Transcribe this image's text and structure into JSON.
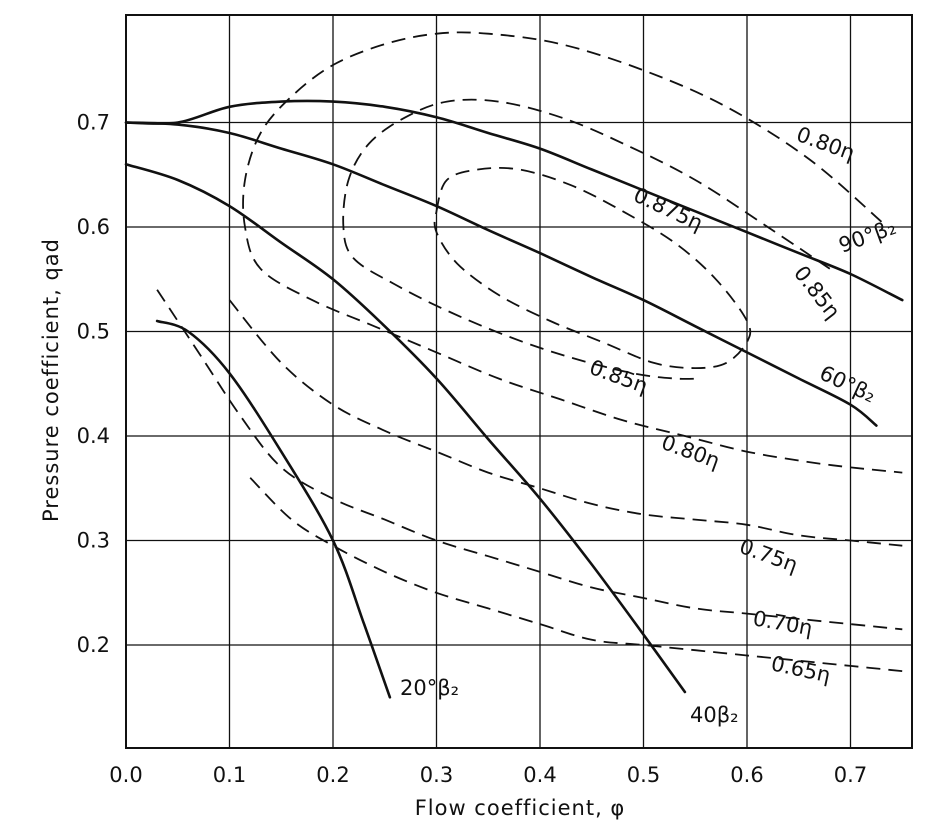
{
  "chart_data": {
    "type": "line",
    "title": "",
    "xlabel": "Flow coefficient, φ",
    "ylabel": "Pressure coefficient, qad",
    "xlim": [
      0.0,
      0.75
    ],
    "ylim": [
      0.1,
      0.8
    ],
    "xticks": [
      "0.0",
      "0.1",
      "0.2",
      "0.3",
      "0.4",
      "0.5",
      "0.6",
      "0.7"
    ],
    "yticks": [
      "0.2",
      "0.3",
      "0.4",
      "0.5",
      "0.6",
      "0.7"
    ],
    "grid": true,
    "legend": "none",
    "blade_curves": [
      {
        "label": "90°β₂",
        "style": "solid",
        "points": [
          [
            0.0,
            0.7
          ],
          [
            0.05,
            0.7
          ],
          [
            0.1,
            0.715
          ],
          [
            0.15,
            0.72
          ],
          [
            0.2,
            0.72
          ],
          [
            0.25,
            0.715
          ],
          [
            0.3,
            0.705
          ],
          [
            0.35,
            0.69
          ],
          [
            0.4,
            0.675
          ],
          [
            0.45,
            0.655
          ],
          [
            0.5,
            0.635
          ],
          [
            0.55,
            0.615
          ],
          [
            0.6,
            0.595
          ],
          [
            0.65,
            0.575
          ],
          [
            0.7,
            0.555
          ],
          [
            0.75,
            0.53
          ]
        ]
      },
      {
        "label": "60°β₂",
        "style": "solid",
        "points": [
          [
            0.0,
            0.7
          ],
          [
            0.05,
            0.698
          ],
          [
            0.1,
            0.69
          ],
          [
            0.15,
            0.675
          ],
          [
            0.2,
            0.66
          ],
          [
            0.25,
            0.64
          ],
          [
            0.3,
            0.62
          ],
          [
            0.35,
            0.597
          ],
          [
            0.4,
            0.575
          ],
          [
            0.45,
            0.552
          ],
          [
            0.5,
            0.53
          ],
          [
            0.55,
            0.505
          ],
          [
            0.6,
            0.48
          ],
          [
            0.65,
            0.455
          ],
          [
            0.7,
            0.43
          ],
          [
            0.725,
            0.41
          ]
        ]
      },
      {
        "label": "40β₂",
        "style": "solid",
        "points": [
          [
            0.0,
            0.66
          ],
          [
            0.05,
            0.645
          ],
          [
            0.1,
            0.62
          ],
          [
            0.15,
            0.585
          ],
          [
            0.2,
            0.55
          ],
          [
            0.25,
            0.505
          ],
          [
            0.3,
            0.455
          ],
          [
            0.35,
            0.397
          ],
          [
            0.4,
            0.34
          ],
          [
            0.45,
            0.277
          ],
          [
            0.5,
            0.21
          ],
          [
            0.54,
            0.155
          ]
        ]
      },
      {
        "label": "20°β₂",
        "style": "solid",
        "points": [
          [
            0.03,
            0.51
          ],
          [
            0.06,
            0.5
          ],
          [
            0.1,
            0.46
          ],
          [
            0.15,
            0.385
          ],
          [
            0.2,
            0.3
          ],
          [
            0.23,
            0.22
          ],
          [
            0.255,
            0.15
          ]
        ]
      }
    ],
    "efficiency_curves": [
      {
        "label": "0.80η",
        "style": "dashed",
        "closed": false,
        "points": [
          [
            0.73,
            0.605
          ],
          [
            0.66,
            0.665
          ],
          [
            0.58,
            0.715
          ],
          [
            0.5,
            0.75
          ],
          [
            0.42,
            0.775
          ],
          [
            0.35,
            0.785
          ],
          [
            0.3,
            0.785
          ],
          [
            0.25,
            0.775
          ],
          [
            0.2,
            0.755
          ],
          [
            0.16,
            0.725
          ],
          [
            0.13,
            0.69
          ],
          [
            0.115,
            0.645
          ],
          [
            0.115,
            0.6
          ],
          [
            0.13,
            0.56
          ],
          [
            0.18,
            0.53
          ],
          [
            0.24,
            0.505
          ],
          [
            0.3,
            0.48
          ],
          [
            0.36,
            0.455
          ],
          [
            0.42,
            0.435
          ],
          [
            0.48,
            0.415
          ],
          [
            0.54,
            0.4
          ],
          [
            0.6,
            0.385
          ],
          [
            0.66,
            0.375
          ],
          [
            0.7,
            0.37
          ],
          [
            0.75,
            0.365
          ]
        ]
      },
      {
        "label": "0.85η",
        "style": "dashed",
        "closed": false,
        "points": [
          [
            0.68,
            0.56
          ],
          [
            0.62,
            0.6
          ],
          [
            0.55,
            0.645
          ],
          [
            0.48,
            0.68
          ],
          [
            0.42,
            0.705
          ],
          [
            0.36,
            0.72
          ],
          [
            0.31,
            0.72
          ],
          [
            0.27,
            0.705
          ],
          [
            0.235,
            0.68
          ],
          [
            0.215,
            0.645
          ],
          [
            0.21,
            0.6
          ],
          [
            0.22,
            0.57
          ],
          [
            0.26,
            0.545
          ],
          [
            0.31,
            0.52
          ],
          [
            0.37,
            0.495
          ],
          [
            0.43,
            0.475
          ],
          [
            0.49,
            0.46
          ],
          [
            0.53,
            0.455
          ],
          [
            0.555,
            0.455
          ]
        ]
      },
      {
        "label": "0.875η",
        "style": "dashed",
        "closed": true,
        "points": [
          [
            0.3,
            0.615
          ],
          [
            0.31,
            0.645
          ],
          [
            0.34,
            0.655
          ],
          [
            0.38,
            0.655
          ],
          [
            0.43,
            0.64
          ],
          [
            0.48,
            0.615
          ],
          [
            0.53,
            0.585
          ],
          [
            0.57,
            0.55
          ],
          [
            0.6,
            0.51
          ],
          [
            0.6,
            0.49
          ],
          [
            0.58,
            0.47
          ],
          [
            0.55,
            0.465
          ],
          [
            0.51,
            0.47
          ],
          [
            0.46,
            0.49
          ],
          [
            0.41,
            0.51
          ],
          [
            0.36,
            0.535
          ],
          [
            0.32,
            0.565
          ],
          [
            0.3,
            0.595
          ]
        ]
      },
      {
        "label": "0.75η",
        "style": "dashed",
        "closed": false,
        "points": [
          [
            0.1,
            0.53
          ],
          [
            0.15,
            0.47
          ],
          [
            0.2,
            0.43
          ],
          [
            0.25,
            0.405
          ],
          [
            0.3,
            0.385
          ],
          [
            0.35,
            0.365
          ],
          [
            0.4,
            0.35
          ],
          [
            0.45,
            0.335
          ],
          [
            0.5,
            0.325
          ],
          [
            0.55,
            0.32
          ],
          [
            0.6,
            0.315
          ],
          [
            0.65,
            0.305
          ],
          [
            0.7,
            0.3
          ],
          [
            0.75,
            0.295
          ]
        ]
      },
      {
        "label": "0.70η",
        "style": "dashed",
        "closed": false,
        "points": [
          [
            0.03,
            0.54
          ],
          [
            0.07,
            0.48
          ],
          [
            0.11,
            0.42
          ],
          [
            0.15,
            0.37
          ],
          [
            0.2,
            0.34
          ],
          [
            0.25,
            0.32
          ],
          [
            0.3,
            0.3
          ],
          [
            0.35,
            0.285
          ],
          [
            0.4,
            0.27
          ],
          [
            0.45,
            0.255
          ],
          [
            0.5,
            0.245
          ],
          [
            0.55,
            0.235
          ],
          [
            0.6,
            0.23
          ],
          [
            0.65,
            0.225
          ],
          [
            0.7,
            0.22
          ],
          [
            0.75,
            0.215
          ]
        ]
      },
      {
        "label": "0.65η",
        "style": "dashed",
        "closed": false,
        "points": [
          [
            0.12,
            0.36
          ],
          [
            0.16,
            0.32
          ],
          [
            0.2,
            0.295
          ],
          [
            0.25,
            0.27
          ],
          [
            0.3,
            0.25
          ],
          [
            0.35,
            0.235
          ],
          [
            0.4,
            0.22
          ],
          [
            0.45,
            0.205
          ],
          [
            0.5,
            0.2
          ],
          [
            0.55,
            0.195
          ],
          [
            0.6,
            0.19
          ],
          [
            0.65,
            0.185
          ],
          [
            0.7,
            0.18
          ],
          [
            0.75,
            0.175
          ]
        ]
      }
    ],
    "annotations": [
      "90°β₂",
      "60°β₂",
      "40β₂",
      "20°β₂",
      "0.80η",
      "0.85η",
      "0.875η",
      "0.85η",
      "0.80η",
      "0.75η",
      "0.70η",
      "0.65η"
    ]
  }
}
